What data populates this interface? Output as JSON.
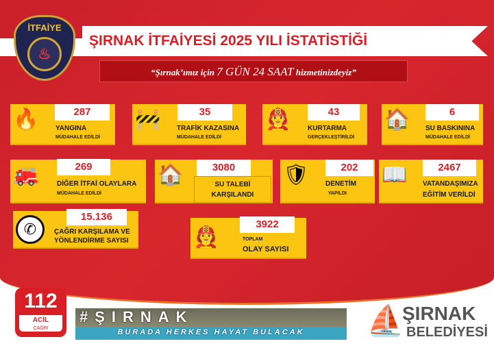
{
  "header": {
    "badge_text": "İTFAİYE",
    "title": "ŞIRNAK İTFAİYESİ 2025 YILI İSTATİSTİĞİ",
    "slogan_pre": "“Şırnak’ımız için",
    "slogan_mid": "7 GÜN 24 SAAT",
    "slogan_post": "hizmetinizdeyiz”"
  },
  "stats": [
    {
      "value": "287",
      "line1": "YANGINA",
      "line2": "MÜDAHALE EDİLDİ",
      "icon": "house-fire-icon"
    },
    {
      "value": "35",
      "line1": "TRAFİK KAZASINA",
      "line2": "MÜDAHALE EDİLDİ",
      "icon": "car-crash-icon"
    },
    {
      "value": "43",
      "line1": "KURTARMA",
      "line2": "GERÇEKLEŞTİRİLDİ",
      "icon": "firefighter-icon"
    },
    {
      "value": "6",
      "line1": "SU BASKININA",
      "line2": "MÜDAHALE EDİLDİ",
      "icon": "flood-icon"
    },
    {
      "value": "269",
      "line1": "DİĞER İTFAİ OLAYLARA",
      "line2": "MÜDAHALE EDİLDİ",
      "icon": "fire-truck-icon"
    },
    {
      "value": "3080",
      "line1": "SU TALEBİ",
      "line2": "KARŞILANDI",
      "icon": "water-house-icon"
    },
    {
      "value": "202",
      "line1": "DENETİM",
      "line2": "YAPILDI",
      "icon": "inspection-icon"
    },
    {
      "value": "2467",
      "line1": "VATANDAŞIMIZA",
      "line2": "EĞİTİM VERİLDİ",
      "icon": "book-icon"
    },
    {
      "value": "15.136",
      "line1": "ÇAĞRI KARŞILAMA VE",
      "line2": "YÖNLENDİRME SAYISI",
      "icon": "phone-icon"
    },
    {
      "value": "3922",
      "line1": "TOPLAM",
      "line2": "OLAY SAYISI",
      "icon": "firefighters-icon"
    }
  ],
  "footer": {
    "emergency_number": "112",
    "emergency_l1": "ACİL",
    "emergency_l2": "ÇAĞRI",
    "banner_hashtag": "#ŞIRNAK",
    "banner_slogan": "BURADA HERKES HAYAT BULACAK",
    "municipality_l1": "ŞIRNAK",
    "municipality_l2": "BELEDİYESİ"
  },
  "colors": {
    "red": "#d81f26",
    "yellow": "#fbc512",
    "navy": "#1f2350"
  }
}
